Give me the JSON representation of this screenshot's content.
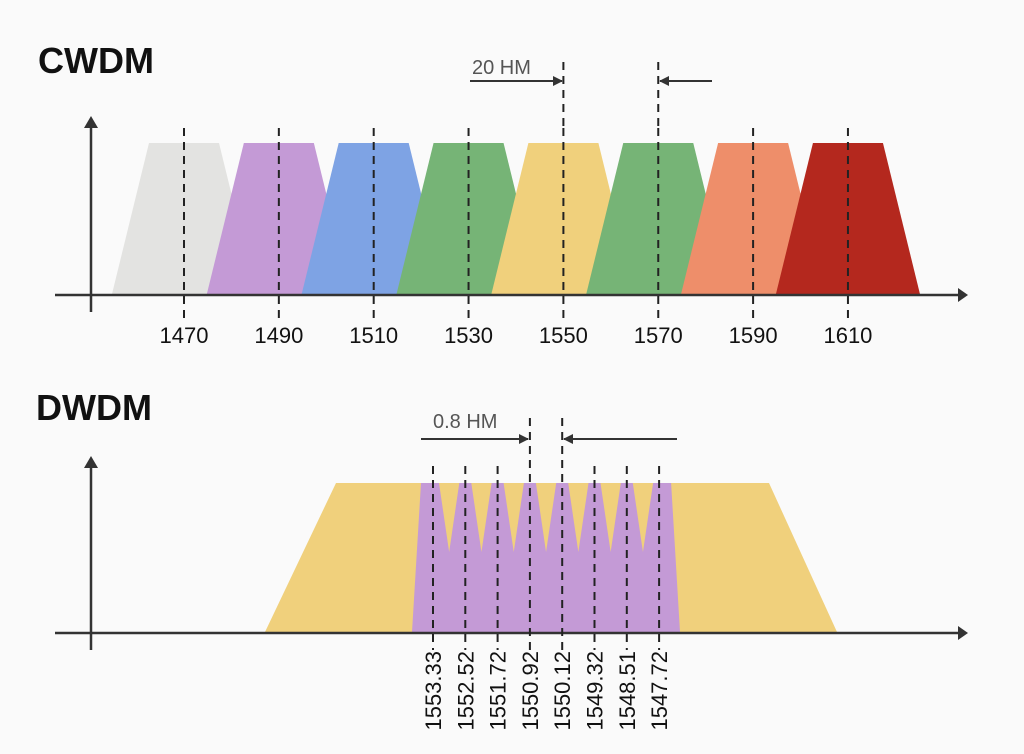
{
  "cwdm": {
    "title": "CWDM",
    "spacing_label": "20 HM",
    "channels": [
      {
        "label": "1470",
        "color": "#e3e3e1"
      },
      {
        "label": "1490",
        "color": "#c49ad6"
      },
      {
        "label": "1510",
        "color": "#7ea3e4"
      },
      {
        "label": "1530",
        "color": "#76b476"
      },
      {
        "label": "1550",
        "color": "#f0d07c"
      },
      {
        "label": "1570",
        "color": "#76b476"
      },
      {
        "label": "1590",
        "color": "#ee8e6a"
      },
      {
        "label": "1610",
        "color": "#b4281e"
      }
    ]
  },
  "dwdm": {
    "title": "DWDM",
    "spacing_label": "0.8 HM",
    "band_color": "#f0d07c",
    "channel_color": "#c49ad6",
    "channels": [
      "1553.33",
      "1552.52",
      "1551.72",
      "1550.92",
      "1550.12",
      "1549.32",
      "1548.51",
      "1547.72"
    ]
  },
  "colors": {
    "axis": "#333333",
    "dashed": "#222222"
  }
}
